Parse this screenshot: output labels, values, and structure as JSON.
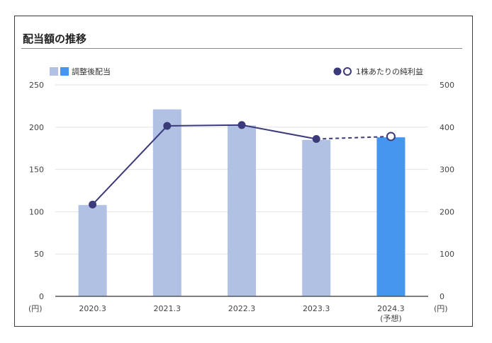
{
  "title": "配当額の推移",
  "chart_data": {
    "type": "bar",
    "categories": [
      "2020.3",
      "2021.3",
      "2022.3",
      "2023.3",
      "2024.3"
    ],
    "category_notes": [
      "",
      "",
      "",
      "",
      "(予想)"
    ],
    "series": [
      {
        "name": "調整後配当",
        "type": "bar",
        "axis": "left",
        "values": [
          108,
          221,
          202,
          185,
          188
        ],
        "forecast_index": 4
      },
      {
        "name": "1株あたりの純利益",
        "type": "line",
        "axis": "right",
        "values": [
          217,
          403,
          405,
          372,
          378
        ],
        "forecast_index": 4
      }
    ],
    "y_left": {
      "ticks": [
        "250",
        "200",
        "150",
        "100",
        "50",
        "0"
      ],
      "ylim": [
        0,
        250
      ],
      "unit": "(円)"
    },
    "y_right": {
      "ticks": [
        "500",
        "400",
        "300",
        "200",
        "100",
        "0"
      ],
      "ylim": [
        0,
        500
      ],
      "unit": "(円)"
    },
    "colors": {
      "bar_actual": "#b0c1e3",
      "bar_forecast": "#4496ef",
      "line": "#3b3a7a",
      "grid": "#e3e3e3",
      "axis": "#555555"
    },
    "grid": true,
    "legend_position": "top"
  }
}
